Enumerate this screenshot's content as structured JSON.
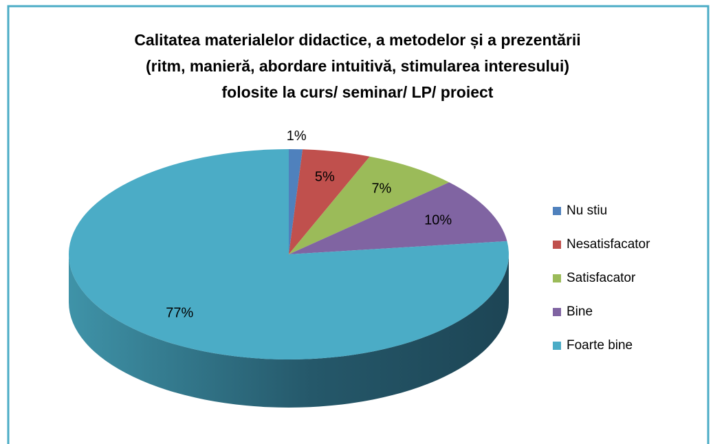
{
  "chart_data": {
    "type": "pie3d",
    "title": [
      "Calitatea materialelor didactice, a metodelor și a prezentării",
      "(ritm, manieră, abordare intuitivă, stimularea interesului)",
      "folosite la curs/ seminar/ LP/ proiect"
    ],
    "categories": [
      "Nu stiu",
      "Nesatisfacator",
      "Satisfacator",
      "Bine",
      "Foarte bine"
    ],
    "values": [
      1,
      5,
      7,
      10,
      77
    ],
    "value_labels": [
      "1%",
      "5%",
      "7%",
      "10%",
      "77%"
    ],
    "colors": [
      "#4f81bd",
      "#c0504d",
      "#9bbb59",
      "#8064a2",
      "#4bacc6"
    ],
    "legend": "right"
  }
}
